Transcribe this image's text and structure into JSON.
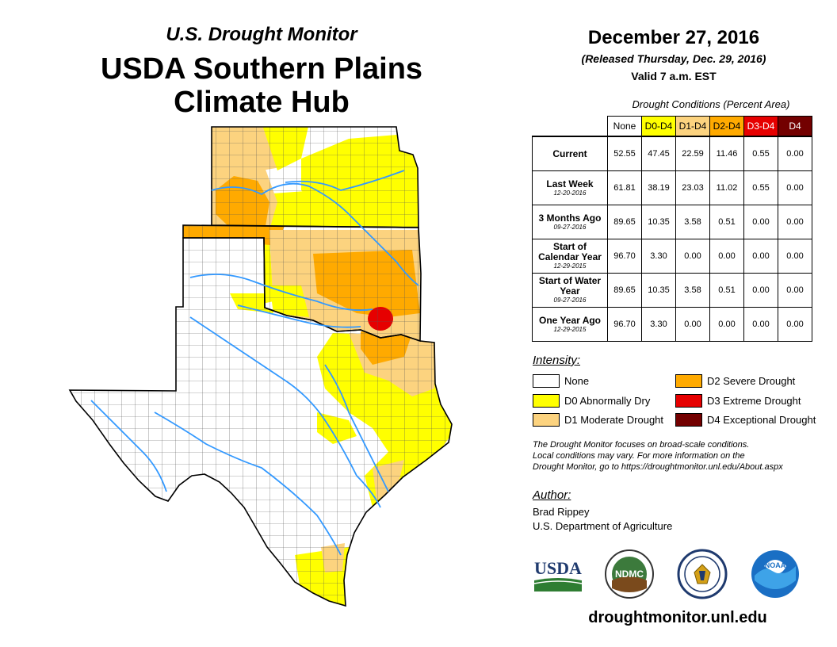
{
  "header": {
    "subtitle": "U.S. Drought Monitor",
    "title_line1": "USDA Southern Plains",
    "title_line2": "Climate Hub",
    "date": "December 27, 2016",
    "released": "(Released Thursday, Dec. 29, 2016)",
    "valid": "Valid 7 a.m. EST"
  },
  "table": {
    "caption": "Drought Conditions (Percent Area)",
    "columns": [
      "None",
      "D0-D4",
      "D1-D4",
      "D2-D4",
      "D3-D4",
      "D4"
    ],
    "rows": [
      {
        "label": "Current",
        "date": "",
        "values": [
          "52.55",
          "47.45",
          "22.59",
          "11.46",
          "0.55",
          "0.00"
        ]
      },
      {
        "label": "Last Week",
        "date": "12-20-2016",
        "values": [
          "61.81",
          "38.19",
          "23.03",
          "11.02",
          "0.55",
          "0.00"
        ]
      },
      {
        "label": "3 Months Ago",
        "date": "09-27-2016",
        "values": [
          "89.65",
          "10.35",
          "3.58",
          "0.51",
          "0.00",
          "0.00"
        ]
      },
      {
        "label": "Start of Calendar Year",
        "date": "12-29-2015",
        "values": [
          "96.70",
          "3.30",
          "0.00",
          "0.00",
          "0.00",
          "0.00"
        ]
      },
      {
        "label": "Start of Water Year",
        "date": "09-27-2016",
        "values": [
          "89.65",
          "10.35",
          "3.58",
          "0.51",
          "0.00",
          "0.00"
        ]
      },
      {
        "label": "One Year Ago",
        "date": "12-29-2015",
        "values": [
          "96.70",
          "3.30",
          "0.00",
          "0.00",
          "0.00",
          "0.00"
        ]
      }
    ]
  },
  "legend": {
    "heading": "Intensity:",
    "items": [
      {
        "label": "None",
        "color": "#ffffff"
      },
      {
        "label": "D0 Abnormally Dry",
        "color": "#ffff00"
      },
      {
        "label": "D1 Moderate Drought",
        "color": "#fcd37f"
      },
      {
        "label": "D2 Severe Drought",
        "color": "#ffaa00"
      },
      {
        "label": "D3 Extreme Drought",
        "color": "#e60000"
      },
      {
        "label": "D4 Exceptional Drought",
        "color": "#730000"
      }
    ]
  },
  "note": {
    "line1": "The Drought Monitor focuses on broad-scale conditions.",
    "line2": "Local conditions may vary. For more information on the",
    "line3": "Drought Monitor, go to https://droughtmonitor.unl.edu/About.aspx"
  },
  "author": {
    "heading": "Author:",
    "name": "Brad Rippey",
    "org": "U.S. Department of Agriculture"
  },
  "logos": {
    "usda": "USDA",
    "ndmc": "NDMC",
    "noaa": "NOAA"
  },
  "footer_url": "droughtmonitor.unl.edu",
  "colors": {
    "none": "#ffffff",
    "d0": "#ffff00",
    "d1": "#fcd37f",
    "d2": "#ffaa00",
    "d3": "#e60000",
    "d4": "#730000",
    "river": "#3399ff"
  },
  "map": {
    "states": [
      "Kansas",
      "Oklahoma",
      "Texas"
    ]
  }
}
